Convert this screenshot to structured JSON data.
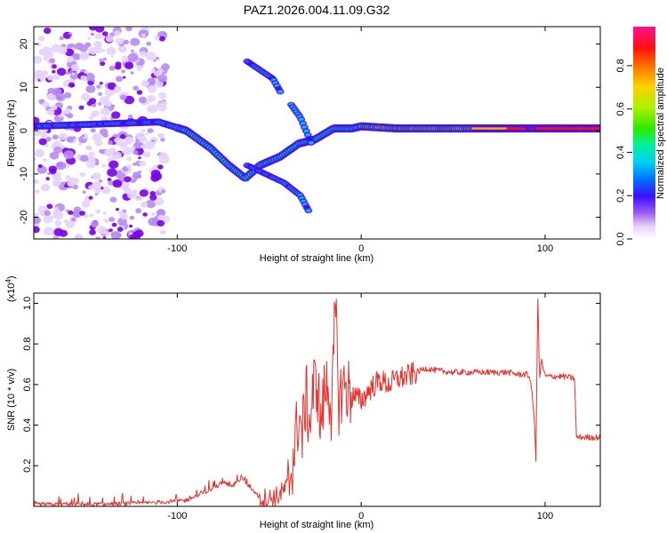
{
  "title": "PAZ1.2026.004.11.09.G32",
  "colors": {
    "frame": "#000000",
    "snr_line": "#e8302c",
    "background": "#ffffff"
  },
  "chart_data": [
    {
      "type": "heatmap",
      "name": "spectrogram",
      "xlabel": "Height of straight line (km)",
      "ylabel": "Frequency (Hz)",
      "xlim": [
        -178,
        130
      ],
      "ylim": [
        -25,
        24
      ],
      "xticks": [
        -100,
        0,
        100
      ],
      "yticks": [
        -20,
        -10,
        0,
        10,
        20
      ],
      "colormap": [
        "#ffffff",
        "#d6b4f6",
        "#7a00e6",
        "#2d13ff",
        "#00c8ff",
        "#00f0a0",
        "#33e600",
        "#d6f000",
        "#ffc000",
        "#ff5000",
        "#ff0030",
        "#ff10a0"
      ],
      "colorbar": {
        "label": "Normalized spectral amplitude",
        "range": [
          0,
          0.98
        ],
        "ticks": [
          {
            "value": 0.0,
            "label": "0.0"
          },
          {
            "value": 0.2,
            "label": "0.2"
          },
          {
            "value": 0.4,
            "label": "0.4"
          },
          {
            "value": 0.6,
            "label": "0.6"
          },
          {
            "value": 0.8,
            "label": "0.8"
          }
        ]
      },
      "features": [
        {
          "name": "main_tone",
          "points": [
            [
              -178,
              1
            ],
            [
              -110,
              2
            ],
            [
              -95,
              0
            ],
            [
              -82,
              -4
            ],
            [
              -72,
              -8
            ],
            [
              -63,
              -11
            ],
            [
              -55,
              -8
            ],
            [
              -44,
              -6
            ],
            [
              -34,
              -3
            ],
            [
              -25,
              -2
            ],
            [
              -15,
              0.5
            ],
            [
              -5,
              0.5
            ],
            [
              0,
              1
            ],
            [
              20,
              0.5
            ],
            [
              60,
              0.5
            ],
            [
              95,
              0.5
            ],
            [
              130,
              0.5
            ]
          ]
        },
        {
          "name": "upper_branch",
          "points": [
            [
              -62,
              16
            ],
            [
              -55,
              14
            ],
            [
              -48,
              12
            ],
            [
              -44,
              9
            ]
          ]
        },
        {
          "name": "lower_branch",
          "points": [
            [
              -62,
              -8
            ],
            [
              -52,
              -10
            ],
            [
              -42,
              -12
            ],
            [
              -33,
              -15
            ],
            [
              -28,
              -19
            ]
          ]
        },
        {
          "name": "mid_branch",
          "points": [
            [
              -38,
              6
            ],
            [
              -33,
              3
            ],
            [
              -30,
              0
            ],
            [
              -27,
              -3
            ]
          ]
        }
      ]
    },
    {
      "type": "line",
      "name": "snr",
      "xlabel": "Height of straight line (km)",
      "ylabel": "SNR (10 * v/v)",
      "multiplier_label": "(x10",
      "multiplier_exp": "4",
      "xlim": [
        -178,
        130
      ],
      "ylim": [
        0,
        1.05
      ],
      "xticks": [
        -100,
        0,
        100
      ],
      "yticks": [
        0.2,
        0.4,
        0.6,
        0.8,
        1.0
      ],
      "series": [
        {
          "name": "SNR",
          "x": [
            -178,
            -160,
            -140,
            -120,
            -110,
            -100,
            -95,
            -90,
            -85,
            -80,
            -75,
            -70,
            -65,
            -60,
            -55,
            -50,
            -45,
            -40,
            -38,
            -36,
            -34,
            -32,
            -30,
            -28,
            -26,
            -24,
            -22,
            -20,
            -18,
            -16,
            -14,
            -12,
            -10,
            -5,
            0,
            5,
            10,
            15,
            20,
            25,
            30,
            35,
            40,
            50,
            60,
            70,
            80,
            85,
            90,
            92,
            94,
            95,
            96,
            97,
            98,
            100,
            110,
            116,
            117,
            118,
            125,
            130
          ],
          "y": [
            0.01,
            0.01,
            0.01,
            0.015,
            0.02,
            0.025,
            0.03,
            0.05,
            0.07,
            0.09,
            0.12,
            0.1,
            0.14,
            0.09,
            0.04,
            0.04,
            0.05,
            0.1,
            0.18,
            0.3,
            0.45,
            0.35,
            0.55,
            0.4,
            0.58,
            0.62,
            0.4,
            0.55,
            0.62,
            0.45,
            0.98,
            0.5,
            0.6,
            0.55,
            0.52,
            0.58,
            0.62,
            0.6,
            0.63,
            0.64,
            0.66,
            0.68,
            0.67,
            0.66,
            0.66,
            0.66,
            0.66,
            0.65,
            0.65,
            0.63,
            0.45,
            0.22,
            1.05,
            0.62,
            0.72,
            0.64,
            0.64,
            0.63,
            0.34,
            0.34,
            0.34,
            0.34
          ]
        }
      ]
    }
  ]
}
